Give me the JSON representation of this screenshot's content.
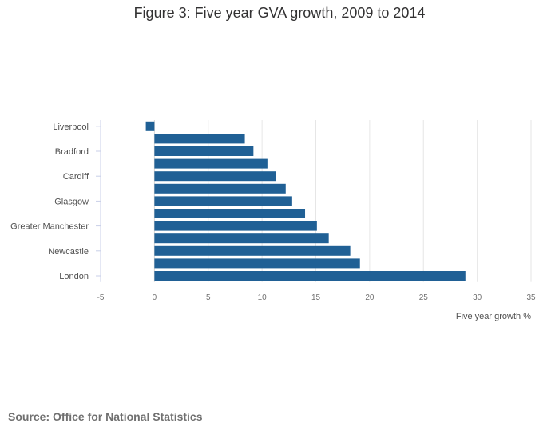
{
  "chart_data": {
    "type": "bar",
    "orientation": "horizontal",
    "title": "Figure 3: Five year GVA growth, 2009 to 2014",
    "xlabel": "Five year growth %",
    "ylabel": "",
    "xlim": [
      -5,
      35
    ],
    "x_ticks": [
      -5,
      0,
      5,
      10,
      15,
      20,
      25,
      30,
      35
    ],
    "categories": [
      "Liverpool",
      "",
      "Bradford",
      "",
      "Cardiff",
      "",
      "Glasgow",
      "",
      "Greater Manchester",
      "",
      "Newcastle",
      "",
      "London"
    ],
    "values": [
      -0.8,
      8.4,
      9.2,
      10.5,
      11.3,
      12.2,
      12.8,
      14.0,
      15.1,
      16.2,
      18.2,
      19.1,
      28.9
    ],
    "bar_color": "#206095",
    "grid": true,
    "legend": "none"
  },
  "source": "Source: Office for National Statistics"
}
